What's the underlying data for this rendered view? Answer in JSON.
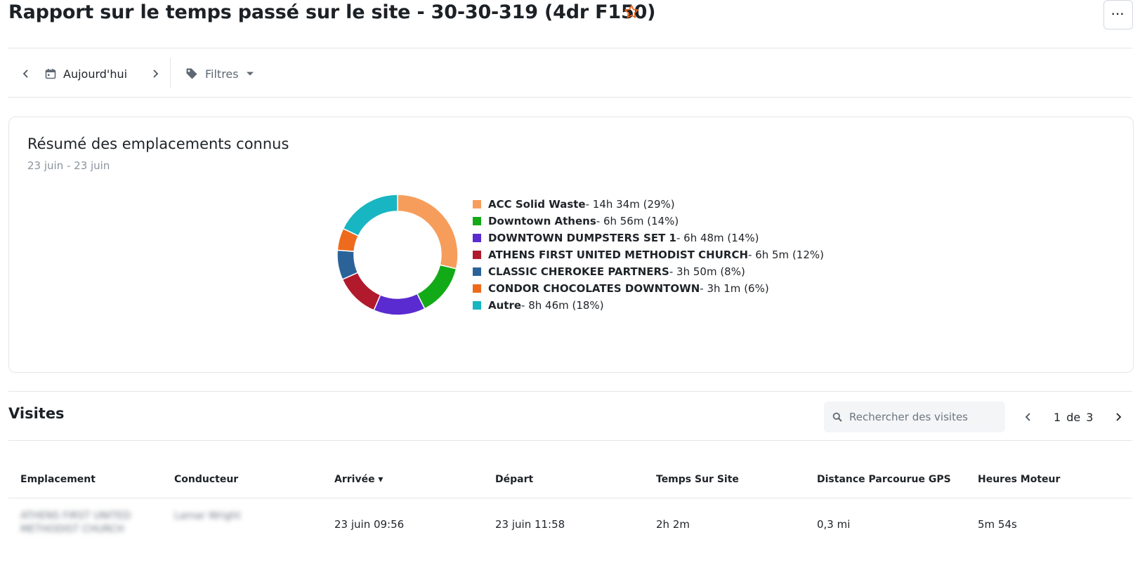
{
  "header": {
    "title": "Rapport sur le temps passé sur le site - 30-30-319 (4dr F150)",
    "more_label": "···"
  },
  "toolbar": {
    "date_label": "Aujourd'hui",
    "filters_label": "Filtres"
  },
  "summary": {
    "title": "Résumé des emplacements connus",
    "date_range": "23 juin - 23 juin",
    "chart_data": {
      "type": "pie",
      "categories": [
        "ACC Solid Waste",
        "Downtown Athens",
        "DOWNTOWN DUMPSTERS SET 1",
        "ATHENS FIRST UNITED METHODIST CHURCH",
        "CLASSIC CHEROKEE PARTNERS",
        "CONDOR CHOCOLATES DOWNTOWN",
        "Autre"
      ],
      "durations": [
        "14h 34m",
        "6h 56m",
        "6h 48m",
        "6h 5m",
        "3h 50m",
        "3h 1m",
        "8h 46m"
      ],
      "values": [
        29,
        14,
        14,
        12,
        8,
        6,
        18
      ],
      "colors": [
        "#f79d5c",
        "#13aa18",
        "#5a2bd0",
        "#b01a2c",
        "#2b6399",
        "#ee6b1d",
        "#18b5c2"
      ]
    },
    "legend": [
      {
        "name": "ACC Solid Waste",
        "detail": " - 14h 34m (29%)"
      },
      {
        "name": "Downtown Athens",
        "detail": " - 6h 56m (14%)"
      },
      {
        "name": "DOWNTOWN DUMPSTERS SET 1",
        "detail": " - 6h 48m (14%)"
      },
      {
        "name": "ATHENS FIRST UNITED METHODIST CHURCH",
        "detail": " - 6h 5m (12%)"
      },
      {
        "name": "CLASSIC CHEROKEE PARTNERS",
        "detail": " - 3h 50m (8%)"
      },
      {
        "name": "CONDOR CHOCOLATES DOWNTOWN",
        "detail": " - 3h 1m (6%)"
      },
      {
        "name": "Autre",
        "detail": " - 8h 46m (18%)"
      }
    ]
  },
  "visits": {
    "title": "Visites",
    "search_placeholder": "Rechercher des visites",
    "page_current": "1",
    "page_of": "de",
    "page_total": "3",
    "columns": [
      "Emplacement",
      "Conducteur",
      "Arrivée ▾",
      "Départ",
      "Temps Sur Site",
      "Distance Parcourue GPS",
      "Heures Moteur"
    ],
    "rows": [
      {
        "location": "ATHENS FIRST UNITED METHODIST CHURCH",
        "driver": "Lamar Wright",
        "arrival": "23 juin 09:56",
        "departure": "23 juin 11:58",
        "time_on_site": "2h 2m",
        "gps_distance": "0,3 mi",
        "engine_hours": "5m 54s"
      }
    ]
  },
  "colors": {
    "accent_star": "#e8641c",
    "border": "#e3e6ea",
    "muted_text": "#8a939d"
  }
}
